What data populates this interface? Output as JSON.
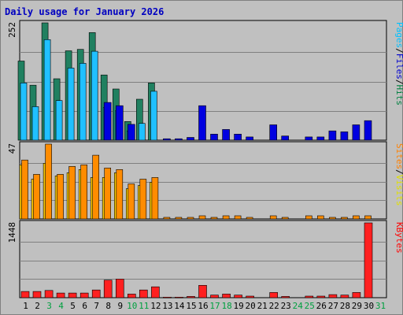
{
  "chart_data": {
    "type": "bar",
    "title": "Daily usage for January 2026",
    "days": [
      "1",
      "2",
      "3",
      "4",
      "5",
      "6",
      "7",
      "8",
      "9",
      "10",
      "11",
      "12",
      "13",
      "14",
      "15",
      "16",
      "17",
      "18",
      "19",
      "20",
      "21",
      "22",
      "23",
      "24",
      "25",
      "26",
      "27",
      "28",
      "29",
      "30",
      "31"
    ],
    "weekend_days": [
      "3",
      "4",
      "10",
      "11",
      "17",
      "18",
      "24",
      "25",
      "31"
    ],
    "panels": [
      {
        "id": "hits-files-pages",
        "max_label": "252",
        "ymax": 252,
        "legend": [
          {
            "text": "Pages",
            "color": "#00c0ff"
          },
          {
            "text": "/",
            "color": "#000000"
          },
          {
            "text": "Files",
            "color": "#0000d0"
          },
          {
            "text": "/",
            "color": "#000000"
          },
          {
            "text": "Hits",
            "color": "#008040"
          }
        ],
        "series": [
          {
            "name": "Hits",
            "color": "#208060",
            "values": [
              170,
              118,
              252,
              132,
              192,
              195,
              231,
              140,
              110,
              40,
              88,
              123,
              0,
              0,
              0,
              0,
              0,
              0,
              0,
              0,
              0,
              0,
              0,
              0,
              0,
              0,
              0,
              0,
              0,
              0,
              0
            ]
          },
          {
            "name": "Pages",
            "color": "#20c0ff",
            "values": [
              123,
              72,
              216,
              85,
              155,
              165,
              191,
              70,
              63,
              20,
              36,
              105,
              0,
              0,
              0,
              0,
              0,
              0,
              0,
              0,
              0,
              0,
              0,
              0,
              0,
              0,
              0,
              0,
              0,
              0,
              0
            ]
          },
          {
            "name": "Files",
            "color": "#0000e0",
            "values": [
              0,
              0,
              0,
              0,
              0,
              0,
              0,
              81,
              74,
              34,
              0,
              0,
              3,
              3,
              6,
              74,
              13,
              23,
              13,
              7,
              0,
              33,
              9,
              0,
              7,
              7,
              20,
              18,
              33,
              42,
              0
            ]
          }
        ]
      },
      {
        "id": "visits-sites",
        "max_label": "47",
        "ymax": 47,
        "legend": [
          {
            "text": "Sites",
            "color": "#ff8000"
          },
          {
            "text": "/",
            "color": "#000000"
          },
          {
            "text": "Visits",
            "color": "#e0e000"
          }
        ],
        "series": [
          {
            "name": "Visits",
            "color": "#ffcc00",
            "values": [
              34,
              25,
              35,
              27,
              29,
              31,
              26,
              26,
              29,
              19,
              21,
              23,
              0,
              0,
              0,
              0,
              0,
              0,
              0,
              0,
              0,
              0,
              0,
              0,
              0,
              0,
              0,
              0,
              0,
              0,
              0
            ]
          },
          {
            "name": "Sites",
            "color": "#ff8c00",
            "values": [
              37,
              28,
              47,
              28,
              33,
              34,
              40,
              32,
              31,
              22,
              25,
              26,
              1,
              1,
              1,
              2,
              1,
              2,
              2,
              1,
              0,
              2,
              1,
              0,
              2,
              2,
              1,
              1,
              2,
              2,
              0
            ]
          }
        ]
      },
      {
        "id": "kbytes",
        "max_label": "1448",
        "ymax": 1448,
        "legend": [
          {
            "text": "KBytes",
            "color": "#ff0000"
          }
        ],
        "series": [
          {
            "name": "KBytes",
            "color": "#ff2020",
            "values": [
              120,
              120,
              140,
              90,
              90,
              90,
              150,
              340,
              360,
              70,
              150,
              210,
              10,
              10,
              25,
              240,
              50,
              70,
              50,
              30,
              0,
              100,
              25,
              0,
              30,
              30,
              60,
              50,
              100,
              1448,
              0
            ]
          }
        ]
      }
    ]
  }
}
